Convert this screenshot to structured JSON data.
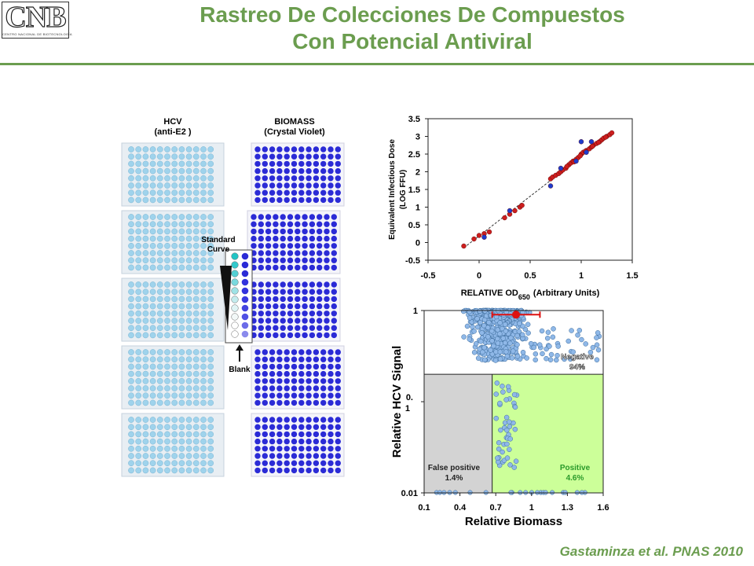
{
  "header": {
    "logo_text": "CNB",
    "logo_subtitle": "CENTRO NACIONAL DE BIOTECNOLOGÍA",
    "title_line1": "Rastreo De Colecciones De Compuestos",
    "title_line2": "Con Potencial Antiviral"
  },
  "plates": {
    "left_title_line1": "HCV",
    "left_title_line2": "(anti-E2 )",
    "right_title_line1": "BIOMASS",
    "right_title_line2": "(Crystal Violet)",
    "standard_curve_line1": "Standard",
    "standard_curve_line2": "Curve",
    "blank_label": "Blank",
    "colors": {
      "hcv_well": "#9fd3ec",
      "biomass_well": "#2b2bd6",
      "plate_bg": "#e8eef3"
    }
  },
  "chart_data": [
    {
      "type": "scatter",
      "title": "",
      "xlabel": "RELATIVE OD650 (Arbitrary Units)",
      "xlabel_main": "RELATIVE OD",
      "xlabel_sub": "650",
      "xlabel_tail": "(Arbitrary Units)",
      "ylabel": "Equivalent Infectious Dose (LOG FFU)",
      "ylabel_line1": "Equivalent Infectious Dose",
      "ylabel_line2": "(LOG FFU)",
      "xlim": [
        -0.5,
        1.5
      ],
      "ylim": [
        -0.5,
        3.5
      ],
      "xticks": [
        "-0.5",
        "0",
        "0.5",
        "1",
        "1.5"
      ],
      "yticks": [
        "-0.5",
        "0",
        "0.5",
        "1",
        "1.5",
        "2",
        "2.5",
        "3",
        "3.5"
      ],
      "fit_line": [
        [
          -0.15,
          -0.15
        ],
        [
          1.3,
          3.1
        ]
      ],
      "series": [
        {
          "color": "#cc1e1e",
          "points": [
            [
              -0.15,
              -0.1
            ],
            [
              -0.05,
              0.1
            ],
            [
              0.0,
              0.2
            ],
            [
              0.05,
              0.25
            ],
            [
              0.1,
              0.3
            ],
            [
              0.25,
              0.7
            ],
            [
              0.3,
              0.8
            ],
            [
              0.35,
              0.9
            ],
            [
              0.4,
              1.0
            ],
            [
              0.42,
              1.05
            ],
            [
              0.7,
              1.8
            ],
            [
              0.72,
              1.85
            ],
            [
              0.75,
              1.9
            ],
            [
              0.78,
              1.95
            ],
            [
              0.8,
              2.0
            ],
            [
              0.82,
              2.05
            ],
            [
              0.85,
              2.1
            ],
            [
              0.88,
              2.2
            ],
            [
              0.9,
              2.25
            ],
            [
              0.92,
              2.3
            ],
            [
              0.95,
              2.35
            ],
            [
              0.97,
              2.4
            ],
            [
              1.0,
              2.5
            ],
            [
              1.02,
              2.55
            ],
            [
              1.05,
              2.6
            ],
            [
              1.08,
              2.65
            ],
            [
              1.1,
              2.7
            ],
            [
              1.12,
              2.75
            ],
            [
              1.15,
              2.8
            ],
            [
              1.18,
              2.85
            ],
            [
              1.2,
              2.9
            ],
            [
              1.22,
              2.95
            ],
            [
              1.25,
              3.0
            ],
            [
              1.28,
              3.05
            ],
            [
              1.3,
              3.1
            ],
            [
              0.86,
              2.15
            ],
            [
              0.93,
              2.28
            ],
            [
              0.99,
              2.45
            ],
            [
              1.04,
              2.58
            ],
            [
              1.11,
              2.72
            ],
            [
              1.17,
              2.83
            ],
            [
              1.24,
              2.98
            ]
          ]
        },
        {
          "color": "#1e3ccc",
          "points": [
            [
              0.05,
              0.15
            ],
            [
              0.3,
              0.9
            ],
            [
              0.7,
              1.6
            ],
            [
              0.8,
              2.1
            ],
            [
              0.95,
              2.3
            ],
            [
              1.0,
              2.85
            ],
            [
              1.05,
              2.55
            ],
            [
              1.1,
              2.85
            ]
          ]
        }
      ]
    },
    {
      "type": "scatter",
      "title": "",
      "xlabel": "Relative Biomass",
      "ylabel": "Relative HCV Signal",
      "x_scale": "linear",
      "y_scale": "log",
      "xlim": [
        0.1,
        1.6
      ],
      "ylim": [
        0.01,
        1
      ],
      "xticks": [
        "0.1",
        "0.4",
        "0.7",
        "1",
        "1.3",
        "1.6"
      ],
      "yticks": [
        "0.01",
        "0.1",
        "1"
      ],
      "ytick_mid_line1": "0.",
      "ytick_mid_line2": "1",
      "thresholds": {
        "x": 0.67,
        "y": 0.2
      },
      "quadrants": [
        {
          "name": "Negative",
          "percent": "94%",
          "region": "top-right"
        },
        {
          "name": "False positive",
          "percent": "1.4%",
          "region": "bottom-left",
          "color": "#d3d3d3"
        },
        {
          "name": "Positive",
          "percent": "4.6%",
          "region": "bottom-right",
          "color": "#ccff99"
        }
      ],
      "control_marker": {
        "x": 0.87,
        "y": 0.9,
        "x_error": [
          0.67,
          1.07
        ],
        "color": "#dd1111"
      },
      "point_color": "#8fb8e8"
    }
  ]
}
